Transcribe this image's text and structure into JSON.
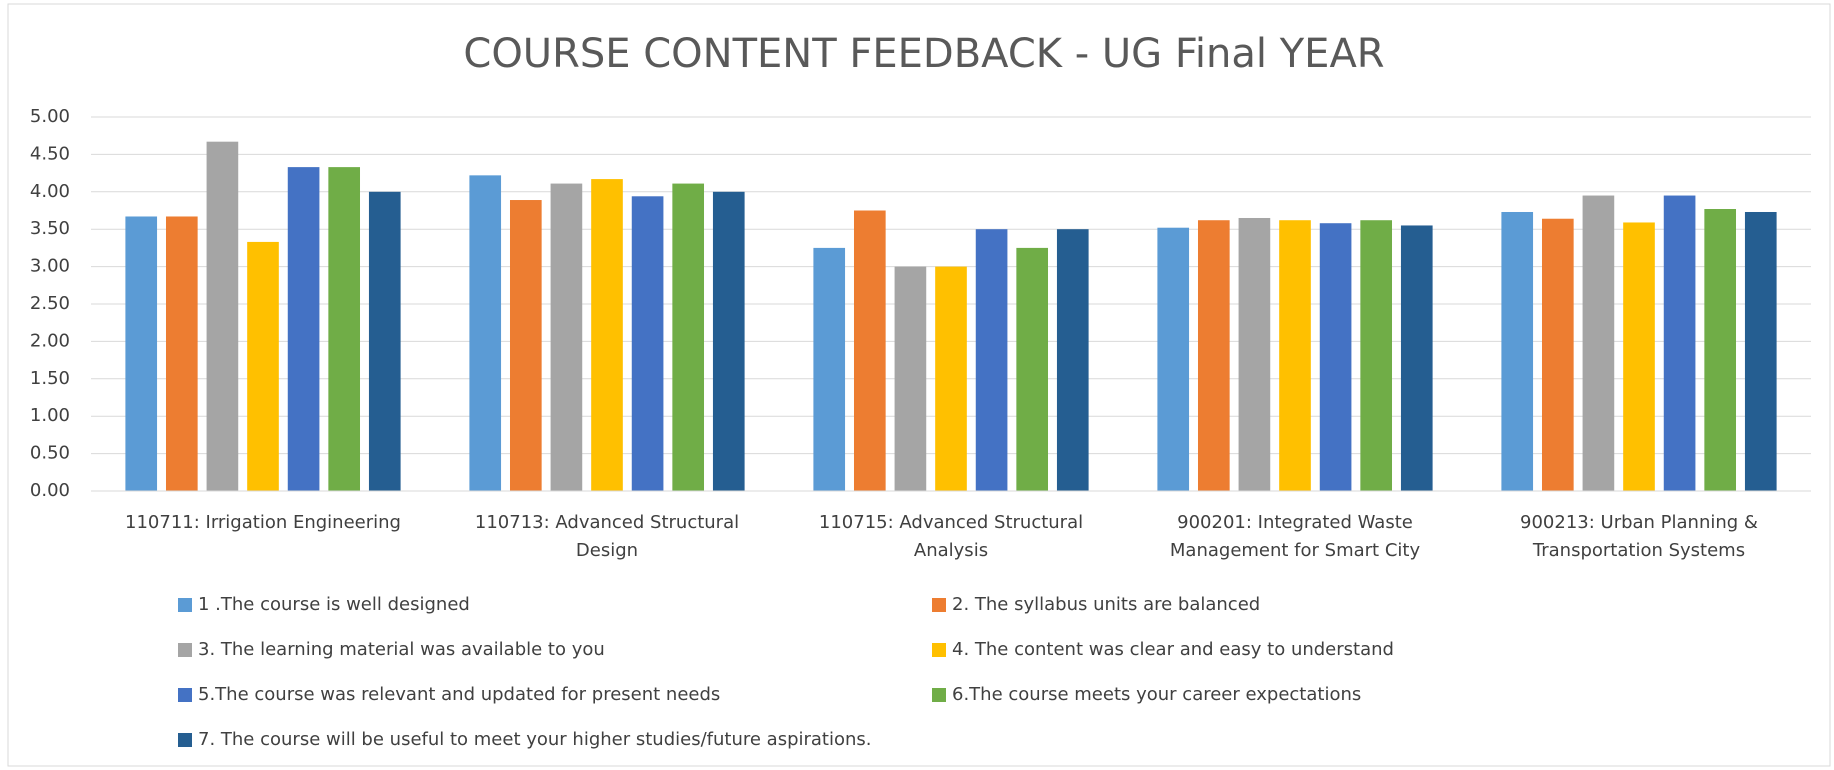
{
  "chart_data": {
    "type": "bar",
    "title": "COURSE CONTENT FEEDBACK - UG Final YEAR",
    "categories": [
      "110711: Irrigation Engineering",
      "110713: Advanced Structural\nDesign",
      "110715: Advanced Structural\nAnalysis",
      "900201: Integrated Waste\nManagement for Smart City",
      "900213: Urban Planning &\nTransportation Systems"
    ],
    "series": [
      {
        "name": "1 .The course is well designed",
        "color": "#5b9bd5",
        "values": [
          3.67,
          4.22,
          3.25,
          3.52,
          3.73
        ]
      },
      {
        "name": "2. The syllabus units are balanced",
        "color": "#ed7d31",
        "values": [
          3.67,
          3.89,
          3.75,
          3.62,
          3.64
        ]
      },
      {
        "name": "3. The learning material was available to you",
        "color": "#a5a5a5",
        "values": [
          4.67,
          4.11,
          3.0,
          3.65,
          3.95
        ]
      },
      {
        "name": "4. The content was clear and easy to understand",
        "color": "#ffc000",
        "values": [
          3.33,
          4.17,
          3.0,
          3.62,
          3.59
        ]
      },
      {
        "name": "5.The course was relevant and updated for present needs",
        "color": "#4472c4",
        "values": [
          4.33,
          3.94,
          3.5,
          3.58,
          3.95
        ]
      },
      {
        "name": "6.The course meets your career expectations",
        "color": "#70ad47",
        "values": [
          4.33,
          4.11,
          3.25,
          3.62,
          3.77
        ]
      },
      {
        "name": "7. The course will be useful to meet your higher studies/future aspirations.",
        "color": "#255e91",
        "values": [
          4.0,
          4.0,
          3.5,
          3.55,
          3.73
        ]
      }
    ],
    "ylim": [
      0,
      5
    ],
    "yticks": [
      {
        "value": 0,
        "label": "0.00"
      },
      {
        "value": 0.5,
        "label": "0.50"
      },
      {
        "value": 1,
        "label": "1.00"
      },
      {
        "value": 1.5,
        "label": "1.50"
      },
      {
        "value": 2,
        "label": "2.00"
      },
      {
        "value": 2.5,
        "label": "2.50"
      },
      {
        "value": 3,
        "label": "3.00"
      },
      {
        "value": 3.5,
        "label": "3.50"
      },
      {
        "value": 4,
        "label": "4.00"
      },
      {
        "value": 4.5,
        "label": "4.50"
      },
      {
        "value": 5,
        "label": "5.00"
      }
    ],
    "grid": true
  }
}
